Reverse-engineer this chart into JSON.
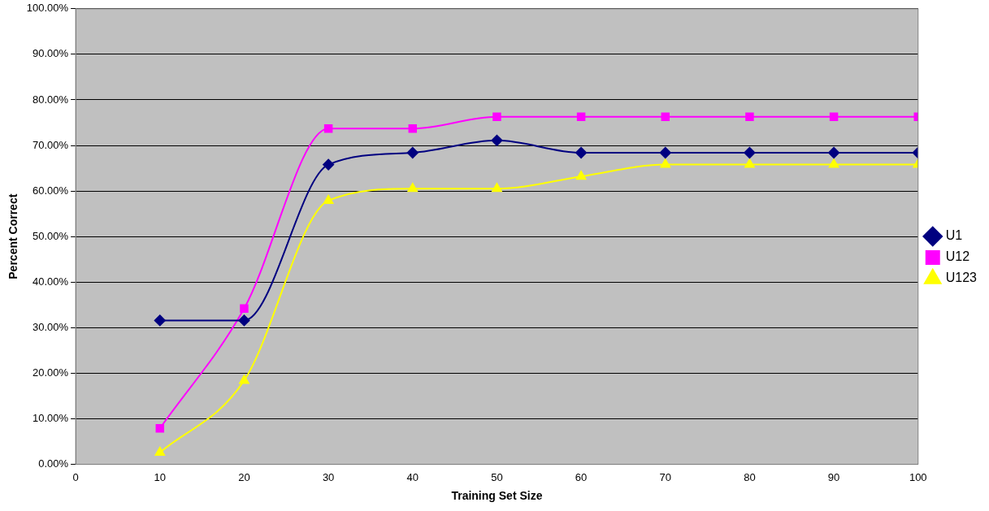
{
  "chart_data": {
    "type": "line",
    "xlabel": "Training Set Size",
    "ylabel": "Percent Correct",
    "x": [
      10,
      20,
      30,
      40,
      50,
      60,
      70,
      80,
      90,
      100
    ],
    "xlim": [
      0,
      100
    ],
    "xticks": [
      0,
      10,
      20,
      30,
      40,
      50,
      60,
      70,
      80,
      90,
      100
    ],
    "ylim": [
      0,
      100
    ],
    "yticks": [
      {
        "value": 0,
        "label": "0.00%"
      },
      {
        "value": 10,
        "label": "10.00%"
      },
      {
        "value": 20,
        "label": "20.00%"
      },
      {
        "value": 30,
        "label": "30.00%"
      },
      {
        "value": 40,
        "label": "40.00%"
      },
      {
        "value": 50,
        "label": "50.00%"
      },
      {
        "value": 60,
        "label": "60.00%"
      },
      {
        "value": 70,
        "label": "70.00%"
      },
      {
        "value": 80,
        "label": "80.00%"
      },
      {
        "value": 90,
        "label": "90.00%"
      },
      {
        "value": 100,
        "label": "100.00%"
      }
    ],
    "grid": "y",
    "legend": "right",
    "line_style": "solid",
    "series": [
      {
        "name": "U1",
        "color": "#000080",
        "marker": "diamond",
        "values": [
          31.6,
          31.6,
          65.8,
          68.4,
          71.1,
          68.4,
          68.4,
          68.4,
          68.4,
          68.4
        ]
      },
      {
        "name": "U12",
        "color": "#ff00ff",
        "marker": "square",
        "values": [
          7.9,
          34.2,
          73.7,
          73.7,
          76.3,
          76.3,
          76.3,
          76.3,
          76.3,
          76.3
        ]
      },
      {
        "name": "U123",
        "color": "#ffff00",
        "marker": "triangle",
        "values": [
          2.6,
          18.4,
          57.9,
          60.5,
          60.5,
          63.2,
          65.8,
          65.8,
          65.8,
          65.8
        ]
      }
    ]
  }
}
